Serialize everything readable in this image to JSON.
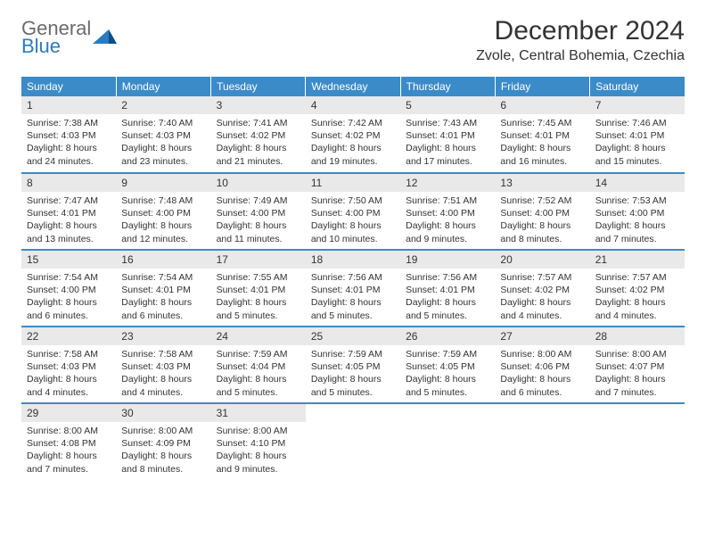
{
  "logo": {
    "word1": "General",
    "word2": "Blue"
  },
  "title": "December 2024",
  "subtitle": "Zvole, Central Bohemia, Czechia",
  "colors": {
    "header_bg": "#3b8bc9",
    "header_text": "#ffffff",
    "daynum_bg": "#e9e9e9",
    "border": "#3b8bc9",
    "logo_gray": "#6b6b6b",
    "logo_blue": "#2b7bbf",
    "text": "#333333",
    "page_bg": "#ffffff"
  },
  "weekdays": [
    "Sunday",
    "Monday",
    "Tuesday",
    "Wednesday",
    "Thursday",
    "Friday",
    "Saturday"
  ],
  "weeks": [
    [
      {
        "n": "1",
        "sr": "7:38 AM",
        "ss": "4:03 PM",
        "dl": "8 hours and 24 minutes."
      },
      {
        "n": "2",
        "sr": "7:40 AM",
        "ss": "4:03 PM",
        "dl": "8 hours and 23 minutes."
      },
      {
        "n": "3",
        "sr": "7:41 AM",
        "ss": "4:02 PM",
        "dl": "8 hours and 21 minutes."
      },
      {
        "n": "4",
        "sr": "7:42 AM",
        "ss": "4:02 PM",
        "dl": "8 hours and 19 minutes."
      },
      {
        "n": "5",
        "sr": "7:43 AM",
        "ss": "4:01 PM",
        "dl": "8 hours and 17 minutes."
      },
      {
        "n": "6",
        "sr": "7:45 AM",
        "ss": "4:01 PM",
        "dl": "8 hours and 16 minutes."
      },
      {
        "n": "7",
        "sr": "7:46 AM",
        "ss": "4:01 PM",
        "dl": "8 hours and 15 minutes."
      }
    ],
    [
      {
        "n": "8",
        "sr": "7:47 AM",
        "ss": "4:01 PM",
        "dl": "8 hours and 13 minutes."
      },
      {
        "n": "9",
        "sr": "7:48 AM",
        "ss": "4:00 PM",
        "dl": "8 hours and 12 minutes."
      },
      {
        "n": "10",
        "sr": "7:49 AM",
        "ss": "4:00 PM",
        "dl": "8 hours and 11 minutes."
      },
      {
        "n": "11",
        "sr": "7:50 AM",
        "ss": "4:00 PM",
        "dl": "8 hours and 10 minutes."
      },
      {
        "n": "12",
        "sr": "7:51 AM",
        "ss": "4:00 PM",
        "dl": "8 hours and 9 minutes."
      },
      {
        "n": "13",
        "sr": "7:52 AM",
        "ss": "4:00 PM",
        "dl": "8 hours and 8 minutes."
      },
      {
        "n": "14",
        "sr": "7:53 AM",
        "ss": "4:00 PM",
        "dl": "8 hours and 7 minutes."
      }
    ],
    [
      {
        "n": "15",
        "sr": "7:54 AM",
        "ss": "4:00 PM",
        "dl": "8 hours and 6 minutes."
      },
      {
        "n": "16",
        "sr": "7:54 AM",
        "ss": "4:01 PM",
        "dl": "8 hours and 6 minutes."
      },
      {
        "n": "17",
        "sr": "7:55 AM",
        "ss": "4:01 PM",
        "dl": "8 hours and 5 minutes."
      },
      {
        "n": "18",
        "sr": "7:56 AM",
        "ss": "4:01 PM",
        "dl": "8 hours and 5 minutes."
      },
      {
        "n": "19",
        "sr": "7:56 AM",
        "ss": "4:01 PM",
        "dl": "8 hours and 5 minutes."
      },
      {
        "n": "20",
        "sr": "7:57 AM",
        "ss": "4:02 PM",
        "dl": "8 hours and 4 minutes."
      },
      {
        "n": "21",
        "sr": "7:57 AM",
        "ss": "4:02 PM",
        "dl": "8 hours and 4 minutes."
      }
    ],
    [
      {
        "n": "22",
        "sr": "7:58 AM",
        "ss": "4:03 PM",
        "dl": "8 hours and 4 minutes."
      },
      {
        "n": "23",
        "sr": "7:58 AM",
        "ss": "4:03 PM",
        "dl": "8 hours and 4 minutes."
      },
      {
        "n": "24",
        "sr": "7:59 AM",
        "ss": "4:04 PM",
        "dl": "8 hours and 5 minutes."
      },
      {
        "n": "25",
        "sr": "7:59 AM",
        "ss": "4:05 PM",
        "dl": "8 hours and 5 minutes."
      },
      {
        "n": "26",
        "sr": "7:59 AM",
        "ss": "4:05 PM",
        "dl": "8 hours and 5 minutes."
      },
      {
        "n": "27",
        "sr": "8:00 AM",
        "ss": "4:06 PM",
        "dl": "8 hours and 6 minutes."
      },
      {
        "n": "28",
        "sr": "8:00 AM",
        "ss": "4:07 PM",
        "dl": "8 hours and 7 minutes."
      }
    ],
    [
      {
        "n": "29",
        "sr": "8:00 AM",
        "ss": "4:08 PM",
        "dl": "8 hours and 7 minutes."
      },
      {
        "n": "30",
        "sr": "8:00 AM",
        "ss": "4:09 PM",
        "dl": "8 hours and 8 minutes."
      },
      {
        "n": "31",
        "sr": "8:00 AM",
        "ss": "4:10 PM",
        "dl": "8 hours and 9 minutes."
      },
      null,
      null,
      null,
      null
    ]
  ],
  "labels": {
    "sunrise": "Sunrise: ",
    "sunset": "Sunset: ",
    "daylight": "Daylight: "
  }
}
